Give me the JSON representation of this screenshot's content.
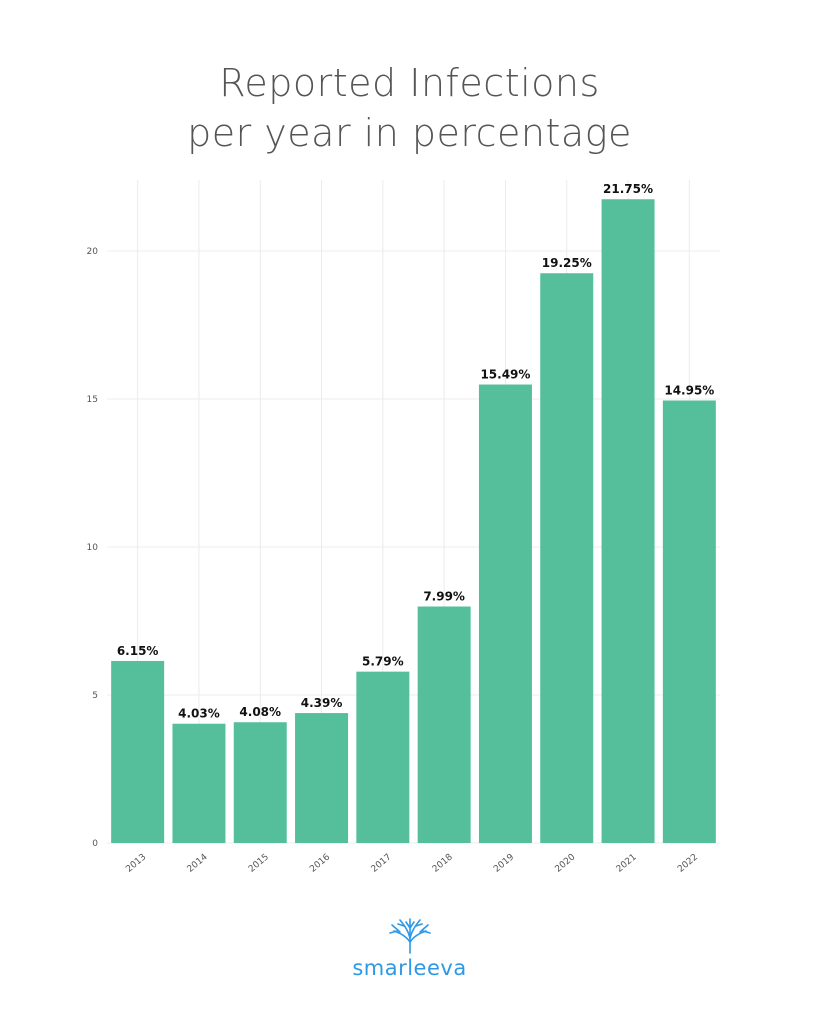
{
  "title_lines": [
    "Reported Infections",
    "per year in percentage"
  ],
  "brand": {
    "name": "smarleeva",
    "icon": "tree-icon",
    "color": "#2f98e6"
  },
  "colors": {
    "bar": "#55bf9c",
    "grid": "#ececec",
    "label": "#111111",
    "tick": "#555555"
  },
  "chart_data": {
    "type": "bar",
    "title": "Reported Infections per year in percentage",
    "categories": [
      "2013",
      "2014",
      "2015",
      "2016",
      "2017",
      "2018",
      "2019",
      "2020",
      "2021",
      "2022"
    ],
    "values": [
      6.15,
      4.03,
      4.08,
      4.39,
      5.79,
      7.99,
      15.49,
      19.25,
      21.75,
      14.95
    ],
    "data_labels": [
      "6.15%",
      "4.03%",
      "4.08%",
      "4.39%",
      "5.79%",
      "7.99%",
      "15.49%",
      "19.25%",
      "21.75%",
      "14.95%"
    ],
    "yticks": [
      0,
      5,
      10,
      15,
      20
    ],
    "ylim": [
      0,
      22.4
    ],
    "xlabel": "",
    "ylabel": "",
    "grid": true,
    "legend": "none"
  }
}
